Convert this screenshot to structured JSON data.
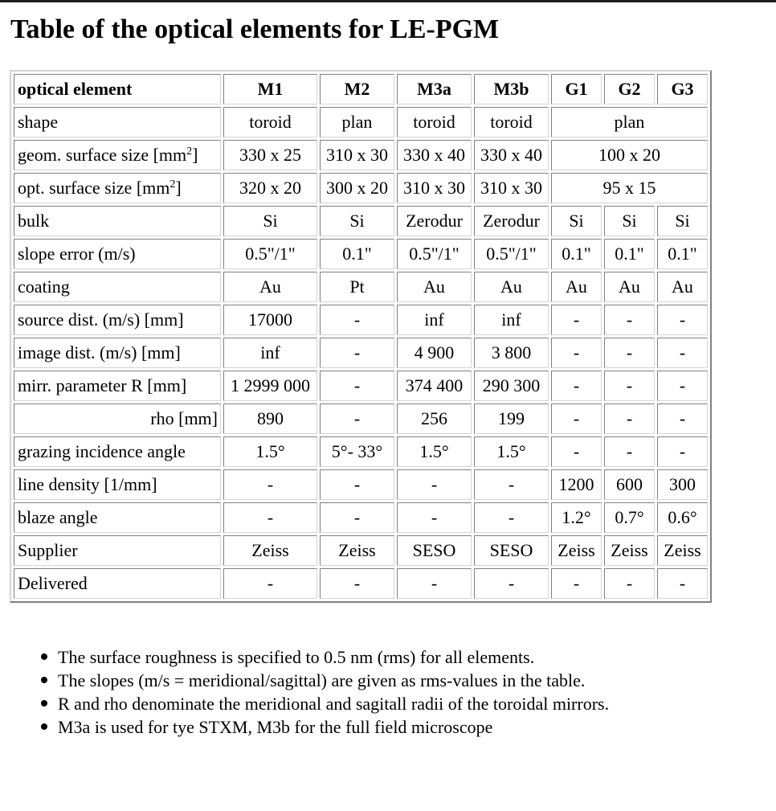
{
  "title": "Table of the optical elements for LE-PGM",
  "table": {
    "header": [
      "optical element",
      "M1",
      "M2",
      "M3a",
      "M3b",
      "G1",
      "G2",
      "G3"
    ],
    "rows": {
      "shape": {
        "label": "shape",
        "m1": "toroid",
        "m2": "plan",
        "m3a": "toroid",
        "m3b": "toroid",
        "g": "plan"
      },
      "geom": {
        "label": "geom. surface size [mm",
        "sup": "2",
        "label_end": "]",
        "m1": "330 x 25",
        "m2": "310 x 30",
        "m3a": "330 x 40",
        "m3b": "330 x 40",
        "g": "100 x 20"
      },
      "opt": {
        "label": "opt. surface size [mm",
        "sup": "2",
        "label_end": "]",
        "m1": "320 x 20",
        "m2": "300 x 20",
        "m3a": "310 x 30",
        "m3b": "310 x 30",
        "g": "95 x 15"
      },
      "bulk": {
        "label": "bulk",
        "cells": [
          "Si",
          "Si",
          "Zerodur",
          "Zerodur",
          "Si",
          "Si",
          "Si"
        ]
      },
      "slope": {
        "label": "slope error (m/s)",
        "cells": [
          "0.5\"/1\"",
          "0.1\"",
          "0.5\"/1\"",
          "0.5\"/1\"",
          "0.1\"",
          "0.1\"",
          "0.1\""
        ]
      },
      "coating": {
        "label": "coating",
        "cells": [
          "Au",
          "Pt",
          "Au",
          "Au",
          "Au",
          "Au",
          "Au"
        ]
      },
      "source": {
        "label": "source dist. (m/s) [mm]",
        "cells": [
          "17000",
          "-",
          "inf",
          "inf",
          "-",
          "-",
          "-"
        ]
      },
      "image": {
        "label": "image dist. (m/s) [mm]",
        "cells": [
          "inf",
          "-",
          "4 900",
          "3 800",
          "-",
          "-",
          "-"
        ]
      },
      "mirr": {
        "label": "mirr. parameter R [mm]",
        "cells": [
          "1 2999 000",
          "-",
          "374 400",
          "290 300",
          "-",
          "-",
          "-"
        ]
      },
      "rho": {
        "label": "rho [mm]",
        "cells": [
          "890",
          "-",
          "256",
          "199",
          "-",
          "-",
          "-"
        ]
      },
      "grazing": {
        "label": "grazing incidence angle",
        "cells": [
          "1.5°",
          "5°- 33°",
          "1.5°",
          "1.5°",
          "-",
          "-",
          "-"
        ]
      },
      "line": {
        "label": "line density [1/mm]",
        "cells": [
          "-",
          "-",
          "-",
          "-",
          "1200",
          "600",
          "300"
        ]
      },
      "blaze": {
        "label": "blaze angle",
        "cells": [
          "-",
          "-",
          "-",
          "-",
          "1.2°",
          "0.7°",
          "0.6°"
        ]
      },
      "supplier": {
        "label": "Supplier",
        "cells": [
          "Zeiss",
          "Zeiss",
          "SESO",
          "SESO",
          "Zeiss",
          "Zeiss",
          "Zeiss"
        ]
      },
      "delivered": {
        "label": "Delivered",
        "cells": [
          "-",
          "-",
          "-",
          "-",
          "-",
          "-",
          "-"
        ]
      }
    }
  },
  "notes": [
    "The surface roughness is specified to 0.5 nm (rms) for all elements.",
    "The slopes (m/s = meridional/sagittal) are given as rms-values in the table.",
    "R and rho denominate the meridional and sagitall radii of the toroidal mirrors.",
    "M3a is used for tye STXM, M3b for the full field microscope"
  ]
}
